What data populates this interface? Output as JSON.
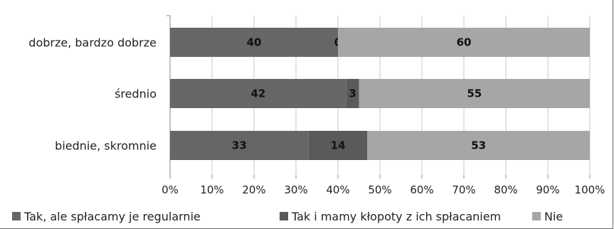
{
  "chart_data": {
    "type": "bar",
    "orientation": "horizontal",
    "stacked": "percent",
    "categories": [
      "dobrze, bardzo dobrze",
      "średnio",
      "biednie, skromnie"
    ],
    "series": [
      {
        "name": "Tak, ale spłacamy je regularnie",
        "values": [
          40,
          42,
          33
        ],
        "color": "#666666"
      },
      {
        "name": "Tak i mamy kłopoty z ich spłacaniem",
        "values": [
          0,
          3,
          14
        ],
        "color": "#5a5a5a"
      },
      {
        "name": "Nie",
        "values": [
          60,
          55,
          53
        ],
        "color": "#a6a6a6"
      }
    ],
    "xlim": [
      0,
      100
    ],
    "xticks": [
      "0%",
      "10%",
      "20%",
      "30%",
      "40%",
      "50%",
      "60%",
      "70%",
      "80%",
      "90%",
      "100%"
    ],
    "legend_position": "bottom",
    "grid": "vertical"
  }
}
